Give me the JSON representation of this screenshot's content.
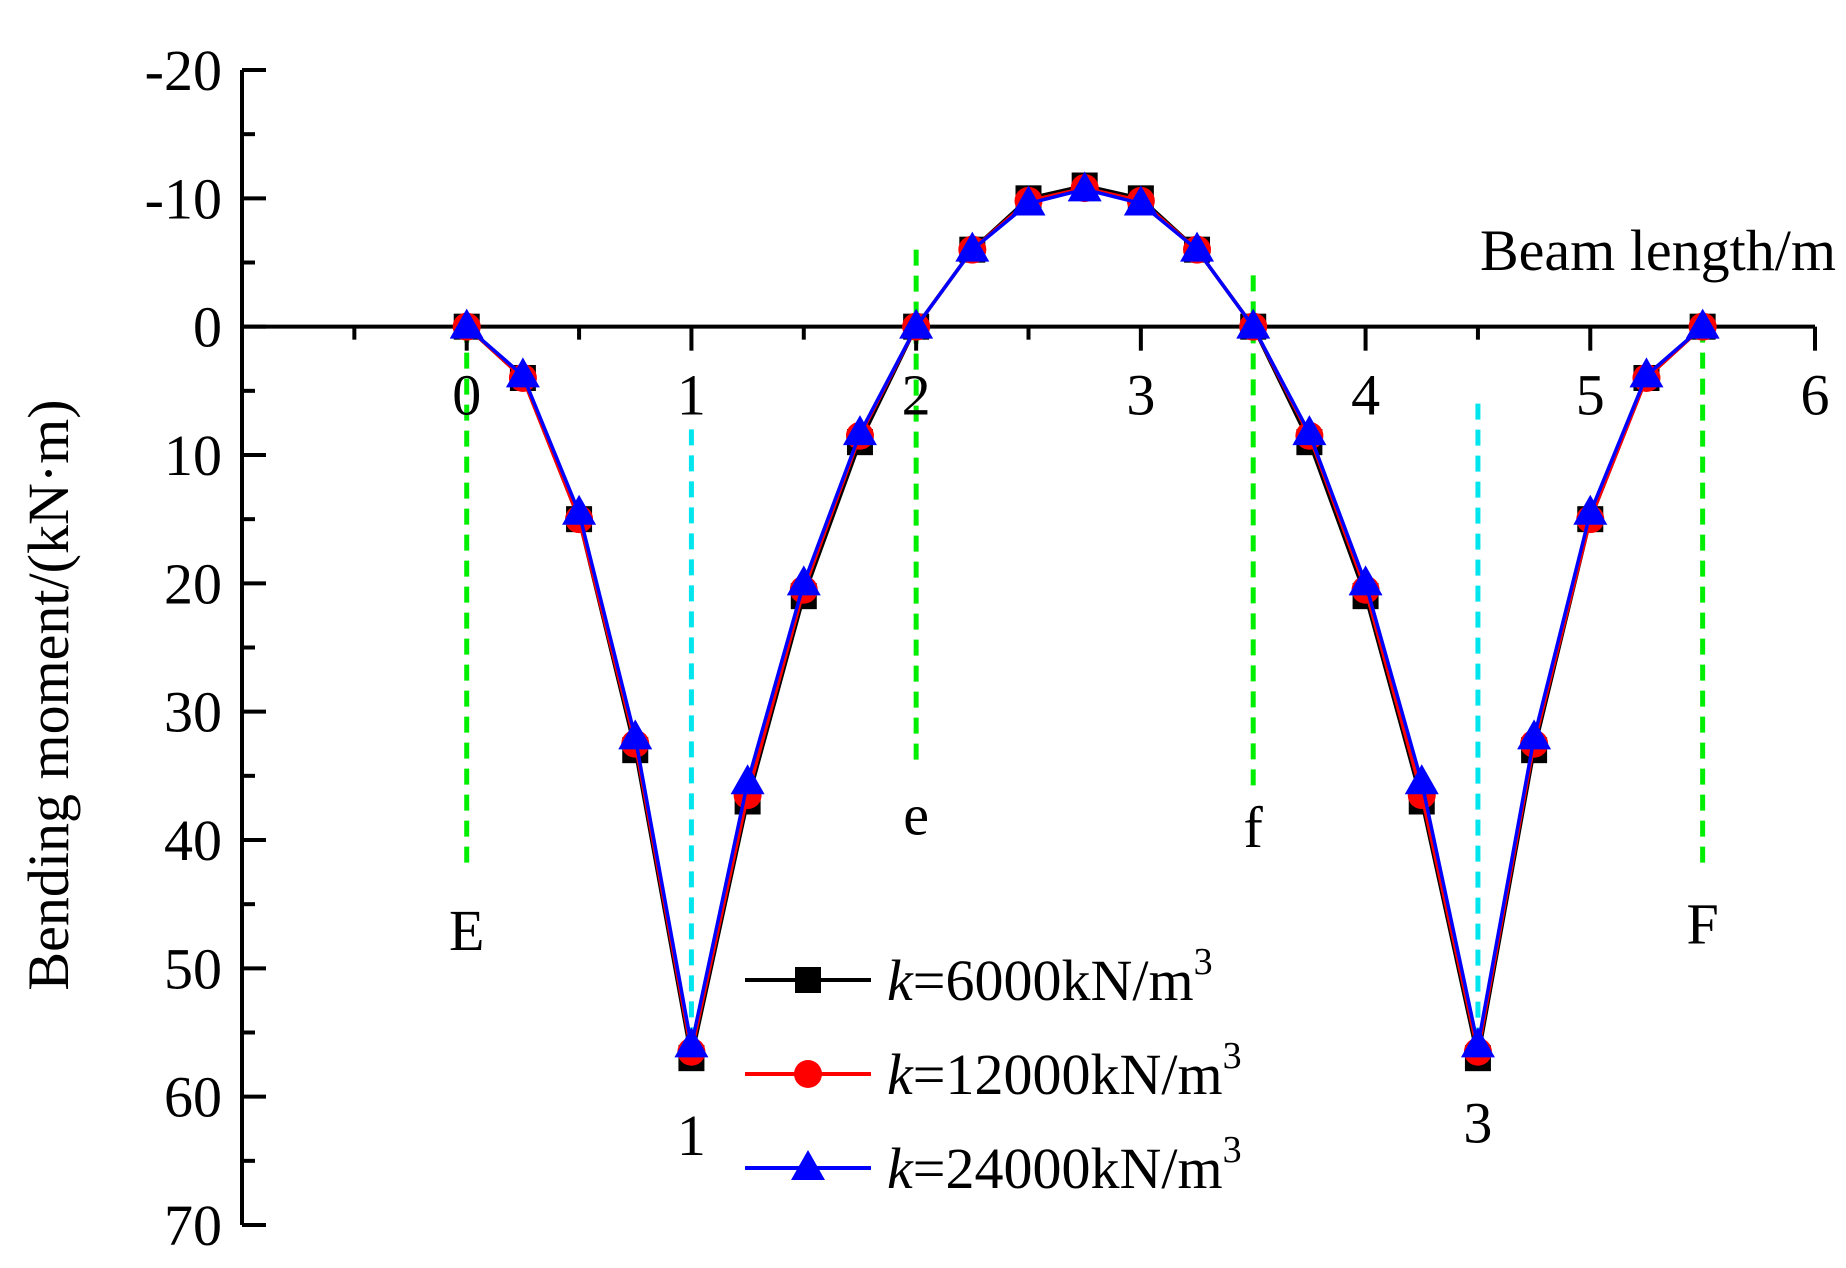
{
  "chart_data": {
    "type": "line",
    "xlabel": "Beam length/m",
    "ylabel": "Bending moment/(kN·m)",
    "xlim": [
      -1,
      6
    ],
    "ylim": [
      -20,
      70
    ],
    "y_inverted": true,
    "x_ticks": [
      0,
      1,
      2,
      3,
      4,
      5,
      6
    ],
    "y_ticks": [
      -20,
      -10,
      0,
      10,
      20,
      30,
      40,
      50,
      60,
      70
    ],
    "x_tick_labels": [
      "0",
      "1",
      "2",
      "3",
      "4",
      "5",
      "6"
    ],
    "y_tick_labels": [
      "-20",
      "-10",
      "0",
      "10",
      "20",
      "30",
      "40",
      "50",
      "60",
      "70"
    ],
    "grid": false,
    "legend_position": "bottom-center",
    "x": [
      0,
      0.25,
      0.5,
      0.75,
      1.0,
      1.25,
      1.5,
      1.75,
      2.0,
      2.25,
      2.5,
      2.75,
      3.0,
      3.25,
      3.5,
      3.75,
      4.0,
      4.25,
      4.5,
      4.75,
      5.0,
      5.25,
      5.5
    ],
    "series": [
      {
        "name": "k=6000kN/m3",
        "legend_k": "k",
        "legend_rest": "=6000kN/m",
        "legend_sup": "3",
        "color": "#000000",
        "marker": "square",
        "values": [
          0,
          4,
          15,
          33,
          57,
          37,
          21,
          9,
          0,
          -6,
          -10,
          -11,
          -10,
          -6,
          0,
          9,
          21,
          37,
          57,
          33,
          15,
          4,
          0
        ]
      },
      {
        "name": "k=12000kN/m3",
        "legend_k": "k",
        "legend_rest": "=12000kN/m",
        "legend_sup": "3",
        "color": "#ff0000",
        "marker": "circle",
        "values": [
          0,
          4,
          15,
          32.5,
          56.5,
          36.5,
          20.5,
          8.5,
          0,
          -6,
          -9.8,
          -10.8,
          -9.8,
          -6,
          0,
          8.5,
          20.5,
          36.5,
          56.5,
          32.5,
          15,
          4,
          0
        ]
      },
      {
        "name": "k=24000kN/m3",
        "legend_k": "k",
        "legend_rest": "=24000kN/m",
        "legend_sup": "3",
        "color": "#0000ff",
        "marker": "triangle",
        "values": [
          0,
          3.8,
          14.5,
          32,
          56,
          35.5,
          20,
          8.3,
          0,
          -6,
          -9.6,
          -10.7,
          -9.6,
          -6,
          0,
          8.3,
          20,
          35.5,
          56,
          32,
          14.5,
          3.8,
          0
        ]
      }
    ],
    "annotations": [
      {
        "text": "E",
        "x": 0.0,
        "y": 47,
        "line_color": "#00ee00",
        "line_y": [
          0,
          42
        ]
      },
      {
        "text": "e",
        "x": 2.0,
        "y": 38,
        "line_color": "#00ee00",
        "line_y": [
          -6,
          34
        ]
      },
      {
        "text": "f",
        "x": 3.5,
        "y": 39,
        "line_color": "#00ee00",
        "line_y": [
          -4,
          36
        ]
      },
      {
        "text": "F",
        "x": 5.5,
        "y": 46.5,
        "line_color": "#00ee00",
        "line_y": [
          0,
          42
        ]
      },
      {
        "text": "1",
        "x": 1.0,
        "y": 63,
        "line_color": "#00e5ee",
        "line_y": [
          8,
          58
        ]
      },
      {
        "text": "3",
        "x": 4.5,
        "y": 62,
        "line_color": "#00e5ee",
        "line_y": [
          6,
          57
        ]
      }
    ]
  }
}
